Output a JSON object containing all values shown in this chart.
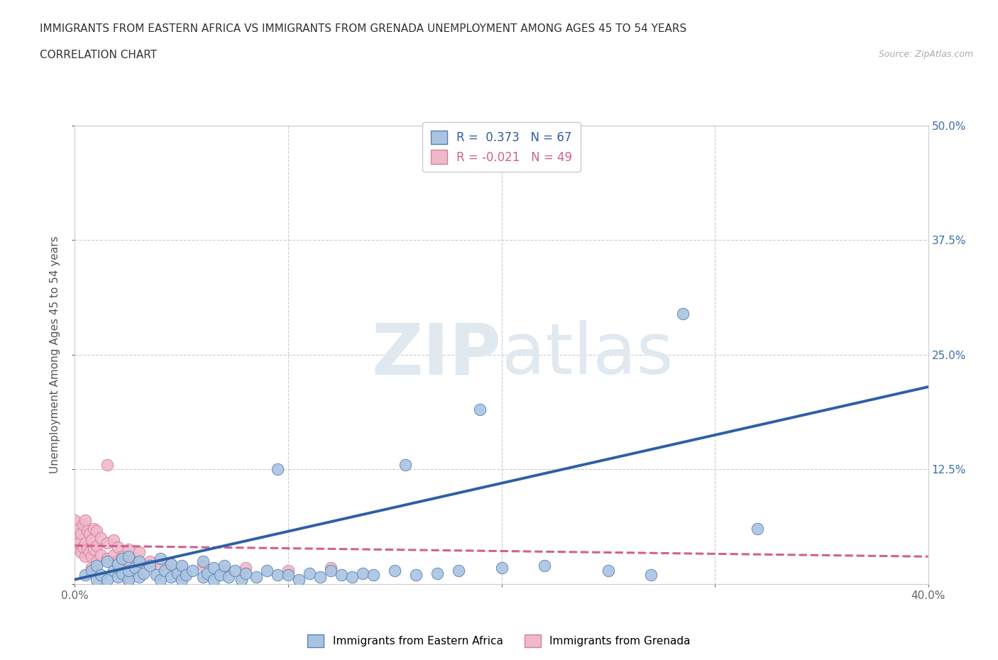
{
  "title_line1": "IMMIGRANTS FROM EASTERN AFRICA VS IMMIGRANTS FROM GRENADA UNEMPLOYMENT AMONG AGES 45 TO 54 YEARS",
  "title_line2": "CORRELATION CHART",
  "source_text": "Source: ZipAtlas.com",
  "ylabel": "Unemployment Among Ages 45 to 54 years",
  "xlim": [
    0,
    0.4
  ],
  "ylim": [
    0,
    0.5
  ],
  "xticks": [
    0.0,
    0.1,
    0.2,
    0.3,
    0.4
  ],
  "xtick_labels": [
    "0.0%",
    "",
    "",
    "",
    "40.0%"
  ],
  "yticks": [
    0.0,
    0.125,
    0.25,
    0.375,
    0.5
  ],
  "ytick_labels": [
    "",
    "12.5%",
    "25.0%",
    "37.5%",
    "50.0%"
  ],
  "blue_R": 0.373,
  "blue_N": 67,
  "pink_R": -0.021,
  "pink_N": 49,
  "blue_color": "#aac4e0",
  "blue_edge_color": "#5580b8",
  "blue_line_color": "#2e5fa3",
  "pink_color": "#f0b8c8",
  "pink_edge_color": "#d080a0",
  "pink_line_color": "#d06090",
  "watermark_zip": "ZIP",
  "watermark_atlas": "atlas",
  "legend_label_blue": "Immigrants from Eastern Africa",
  "legend_label_pink": "Immigrants from Grenada",
  "blue_scatter_x": [
    0.005,
    0.008,
    0.01,
    0.01,
    0.012,
    0.015,
    0.015,
    0.018,
    0.02,
    0.02,
    0.022,
    0.022,
    0.025,
    0.025,
    0.025,
    0.028,
    0.03,
    0.03,
    0.032,
    0.035,
    0.038,
    0.04,
    0.04,
    0.042,
    0.045,
    0.045,
    0.048,
    0.05,
    0.05,
    0.052,
    0.055,
    0.06,
    0.06,
    0.062,
    0.065,
    0.065,
    0.068,
    0.07,
    0.072,
    0.075,
    0.078,
    0.08,
    0.085,
    0.09,
    0.095,
    0.1,
    0.105,
    0.11,
    0.115,
    0.12,
    0.125,
    0.13,
    0.135,
    0.14,
    0.15,
    0.16,
    0.17,
    0.18,
    0.2,
    0.22,
    0.25,
    0.27,
    0.19,
    0.155,
    0.095,
    0.285,
    0.32
  ],
  "blue_scatter_y": [
    0.01,
    0.015,
    0.005,
    0.02,
    0.01,
    0.005,
    0.025,
    0.015,
    0.008,
    0.022,
    0.012,
    0.028,
    0.005,
    0.015,
    0.03,
    0.018,
    0.008,
    0.025,
    0.012,
    0.02,
    0.01,
    0.005,
    0.028,
    0.015,
    0.008,
    0.022,
    0.012,
    0.005,
    0.02,
    0.01,
    0.015,
    0.008,
    0.025,
    0.012,
    0.005,
    0.018,
    0.01,
    0.02,
    0.008,
    0.015,
    0.005,
    0.012,
    0.008,
    0.015,
    0.01,
    0.01,
    0.005,
    0.012,
    0.008,
    0.015,
    0.01,
    0.008,
    0.012,
    0.01,
    0.015,
    0.01,
    0.012,
    0.015,
    0.018,
    0.02,
    0.015,
    0.01,
    0.19,
    0.13,
    0.125,
    0.295,
    0.06
  ],
  "pink_scatter_x": [
    0.0,
    0.0,
    0.0,
    0.002,
    0.002,
    0.003,
    0.003,
    0.004,
    0.004,
    0.005,
    0.005,
    0.005,
    0.006,
    0.006,
    0.007,
    0.007,
    0.008,
    0.008,
    0.009,
    0.009,
    0.01,
    0.01,
    0.01,
    0.012,
    0.012,
    0.015,
    0.015,
    0.018,
    0.018,
    0.02,
    0.02,
    0.022,
    0.025,
    0.025,
    0.028,
    0.03,
    0.03,
    0.035,
    0.04,
    0.045,
    0.05,
    0.06,
    0.07,
    0.08,
    0.1,
    0.12,
    0.015,
    0.008,
    0.025
  ],
  "pink_scatter_y": [
    0.04,
    0.055,
    0.07,
    0.045,
    0.06,
    0.035,
    0.055,
    0.04,
    0.065,
    0.03,
    0.045,
    0.07,
    0.038,
    0.058,
    0.035,
    0.055,
    0.03,
    0.048,
    0.038,
    0.06,
    0.025,
    0.042,
    0.058,
    0.032,
    0.05,
    0.028,
    0.045,
    0.032,
    0.048,
    0.025,
    0.04,
    0.03,
    0.025,
    0.038,
    0.028,
    0.022,
    0.035,
    0.025,
    0.02,
    0.022,
    0.018,
    0.02,
    0.015,
    0.018,
    0.015,
    0.018,
    0.13,
    0.018,
    0.005
  ],
  "blue_trend_x": [
    0.0,
    0.4
  ],
  "blue_trend_y": [
    0.005,
    0.215
  ],
  "pink_trend_x": [
    0.0,
    0.4
  ],
  "pink_trend_y": [
    0.042,
    0.03
  ],
  "grid_color": "#cccccc",
  "background_color": "#ffffff"
}
